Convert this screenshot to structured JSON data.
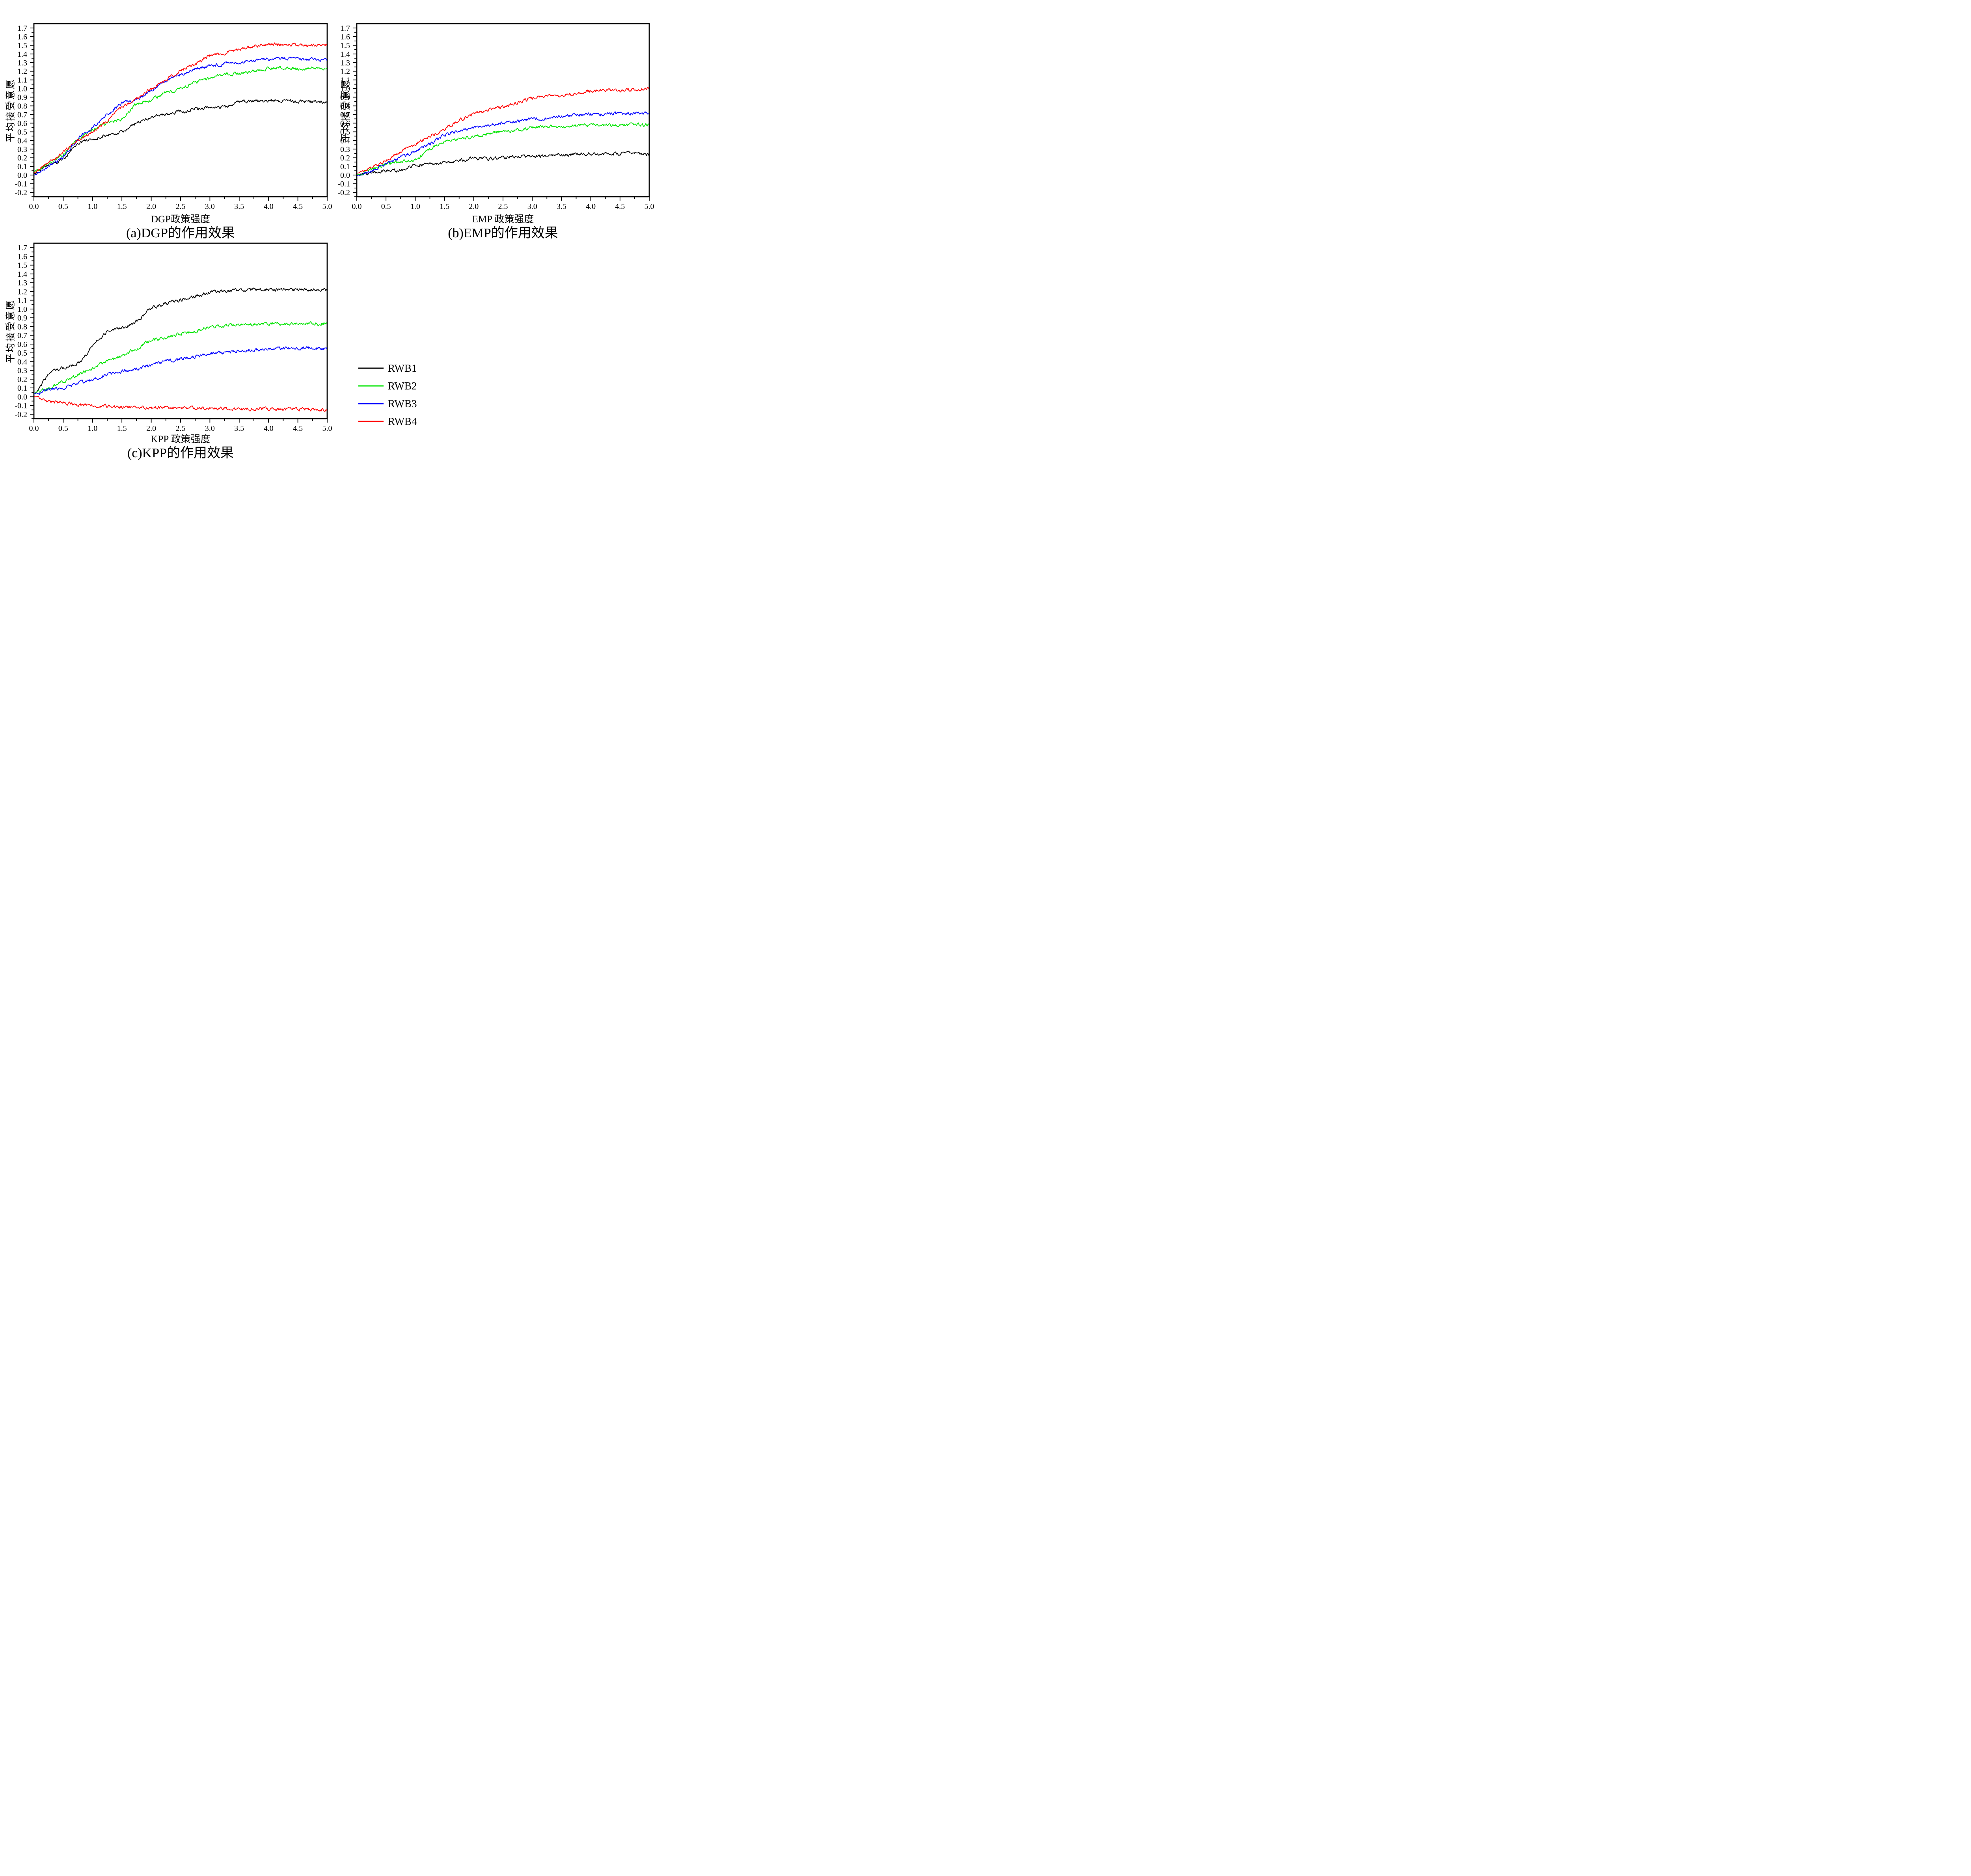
{
  "figure": {
    "background": "#ffffff",
    "frame_color": "#000000",
    "y_axis_label": "平均接受意愿"
  },
  "legend": {
    "position": "bottom-right-quadrant",
    "entries": [
      {
        "label": "RWB1",
        "color": "#000000"
      },
      {
        "label": "RWB2",
        "color": "#00e400",
        "line_color_name": "green"
      },
      {
        "label": "RWB3",
        "color": "#0000ff",
        "line_color_name": "blue"
      },
      {
        "label": "RWB4",
        "color": "#ff0000",
        "line_color_name": "red"
      }
    ]
  },
  "chart_data": [
    {
      "id": "a",
      "type": "line",
      "title": "(a)DGP的作用效果",
      "xlabel": "DGP政策强度",
      "ylabel": "平均接受意愿",
      "xlim": [
        0,
        5
      ],
      "ylim": [
        -0.25,
        1.75
      ],
      "x_tick_labels": [
        "0.0",
        "0.5",
        "1.0",
        "1.5",
        "2.0",
        "2.5",
        "3.0",
        "3.5",
        "4.0",
        "4.5",
        "5.0"
      ],
      "y_tick_labels": [
        "1.7",
        "1.6",
        "1.5",
        "1.4",
        "1.3",
        "1.2",
        "1.1",
        "1.0",
        "0.9",
        "0.8",
        "0.7",
        "0.6",
        "0.5",
        "0.4",
        "0.3",
        "0.2",
        "0.1",
        "0.0",
        "-0.1",
        "-0.2"
      ],
      "x_minor_step": 0.25,
      "y_minor_step": 0.05,
      "grid": false,
      "x": [
        0,
        0.25,
        0.5,
        0.75,
        1,
        1.25,
        1.5,
        1.75,
        2,
        2.25,
        2.5,
        2.75,
        3,
        3.25,
        3.5,
        3.75,
        4,
        4.25,
        4.5,
        4.75,
        5
      ],
      "series": [
        {
          "name": "RWB1",
          "values": [
            0.02,
            0.11,
            0.19,
            0.36,
            0.42,
            0.46,
            0.51,
            0.6,
            0.67,
            0.7,
            0.73,
            0.76,
            0.78,
            0.79,
            0.84,
            0.855,
            0.86,
            0.855,
            0.85,
            0.85,
            0.84
          ]
        },
        {
          "name": "RWB2",
          "values": [
            0.04,
            0.13,
            0.24,
            0.41,
            0.52,
            0.6,
            0.65,
            0.82,
            0.87,
            0.95,
            1.0,
            1.07,
            1.12,
            1.17,
            1.17,
            1.2,
            1.23,
            1.24,
            1.23,
            1.24,
            1.23
          ]
        },
        {
          "name": "RWB3",
          "values": [
            0.0,
            0.1,
            0.21,
            0.42,
            0.55,
            0.7,
            0.83,
            0.87,
            0.97,
            1.09,
            1.16,
            1.22,
            1.26,
            1.28,
            1.3,
            1.32,
            1.34,
            1.35,
            1.34,
            1.34,
            1.33
          ]
        },
        {
          "name": "RWB4",
          "values": [
            0.03,
            0.14,
            0.26,
            0.4,
            0.5,
            0.63,
            0.78,
            0.88,
            1.0,
            1.1,
            1.21,
            1.28,
            1.38,
            1.41,
            1.45,
            1.49,
            1.51,
            1.51,
            1.5,
            1.5,
            1.5
          ]
        }
      ]
    },
    {
      "id": "b",
      "type": "line",
      "title": "(b)EMP的作用效果",
      "xlabel": "EMP 政策强度",
      "ylabel": "平均接受意愿",
      "xlim": [
        0,
        5
      ],
      "ylim": [
        -0.25,
        1.75
      ],
      "x_tick_labels": [
        "0.0",
        "0.5",
        "1.0",
        "1.5",
        "2.0",
        "2.5",
        "3.0",
        "3.5",
        "4.0",
        "4.5",
        "5.0"
      ],
      "y_tick_labels": [
        "1.7",
        "1.6",
        "1.5",
        "1.4",
        "1.3",
        "1.2",
        "1.1",
        "1.0",
        "0.9",
        "0.8",
        "0.7",
        "0.6",
        "0.5",
        "0.4",
        "0.3",
        "0.2",
        "0.1",
        "0.0",
        "-0.1",
        "-0.2"
      ],
      "x_minor_step": 0.25,
      "y_minor_step": 0.05,
      "grid": false,
      "x": [
        0,
        0.25,
        0.5,
        0.75,
        1,
        1.25,
        1.5,
        1.75,
        2,
        2.25,
        2.5,
        2.75,
        3,
        3.25,
        3.5,
        3.75,
        4,
        4.25,
        4.5,
        4.75,
        5
      ],
      "series": [
        {
          "name": "RWB1",
          "values": [
            0.0,
            0.03,
            0.05,
            0.06,
            0.11,
            0.13,
            0.14,
            0.17,
            0.19,
            0.19,
            0.2,
            0.21,
            0.22,
            0.225,
            0.235,
            0.24,
            0.245,
            0.25,
            0.25,
            0.255,
            0.24
          ]
        },
        {
          "name": "RWB2",
          "values": [
            0.0,
            0.065,
            0.12,
            0.16,
            0.18,
            0.3,
            0.38,
            0.42,
            0.45,
            0.475,
            0.5,
            0.515,
            0.545,
            0.56,
            0.56,
            0.575,
            0.575,
            0.575,
            0.575,
            0.58,
            0.58
          ]
        },
        {
          "name": "RWB3",
          "values": [
            -0.01,
            0.05,
            0.13,
            0.2,
            0.28,
            0.36,
            0.46,
            0.51,
            0.545,
            0.575,
            0.605,
            0.62,
            0.65,
            0.66,
            0.68,
            0.695,
            0.7,
            0.705,
            0.71,
            0.71,
            0.71
          ]
        },
        {
          "name": "RWB4",
          "values": [
            0.02,
            0.09,
            0.17,
            0.27,
            0.36,
            0.45,
            0.53,
            0.63,
            0.7,
            0.75,
            0.79,
            0.83,
            0.89,
            0.91,
            0.92,
            0.94,
            0.97,
            0.98,
            0.98,
            0.99,
            0.995
          ]
        }
      ]
    },
    {
      "id": "c",
      "type": "line",
      "title": "(c)KPP的作用效果",
      "xlabel": "KPP 政策强度",
      "ylabel": "平均接受意愿",
      "xlim": [
        0,
        5
      ],
      "ylim": [
        -0.25,
        1.75
      ],
      "x_tick_labels": [
        "0.0",
        "0.5",
        "1.0",
        "1.5",
        "2.0",
        "2.5",
        "3.0",
        "3.5",
        "4.0",
        "4.5",
        "5.0"
      ],
      "y_tick_labels": [
        "1.7",
        "1.6",
        "1.5",
        "1.4",
        "1.3",
        "1.2",
        "1.1",
        "1.0",
        "0.9",
        "0.8",
        "0.7",
        "0.6",
        "0.5",
        "0.4",
        "0.3",
        "0.2",
        "0.1",
        "0.0",
        "-0.1",
        "-0.2"
      ],
      "x_minor_step": 0.25,
      "y_minor_step": 0.05,
      "grid": false,
      "x": [
        0,
        0.25,
        0.5,
        0.75,
        1,
        1.25,
        1.5,
        1.75,
        2,
        2.25,
        2.5,
        2.75,
        3,
        3.25,
        3.5,
        3.75,
        4,
        4.25,
        4.5,
        4.75,
        5
      ],
      "series": [
        {
          "name": "RWB1",
          "values": [
            0.03,
            0.25,
            0.33,
            0.38,
            0.57,
            0.74,
            0.79,
            0.86,
            1.0,
            1.065,
            1.1,
            1.14,
            1.19,
            1.2,
            1.21,
            1.215,
            1.22,
            1.22,
            1.22,
            1.22,
            1.22
          ]
        },
        {
          "name": "RWB2",
          "values": [
            0.04,
            0.1,
            0.17,
            0.25,
            0.33,
            0.4,
            0.47,
            0.55,
            0.64,
            0.67,
            0.72,
            0.75,
            0.79,
            0.81,
            0.815,
            0.825,
            0.835,
            0.83,
            0.83,
            0.835,
            0.83
          ]
        },
        {
          "name": "RWB3",
          "values": [
            0.03,
            0.075,
            0.105,
            0.15,
            0.19,
            0.25,
            0.29,
            0.32,
            0.36,
            0.4,
            0.43,
            0.46,
            0.49,
            0.5,
            0.52,
            0.53,
            0.545,
            0.55,
            0.55,
            0.555,
            0.54
          ]
        },
        {
          "name": "RWB4",
          "values": [
            0.0,
            -0.05,
            -0.07,
            -0.09,
            -0.1,
            -0.11,
            -0.12,
            -0.12,
            -0.125,
            -0.125,
            -0.13,
            -0.13,
            -0.135,
            -0.135,
            -0.14,
            -0.14,
            -0.14,
            -0.145,
            -0.14,
            -0.145,
            -0.15
          ]
        }
      ]
    }
  ]
}
